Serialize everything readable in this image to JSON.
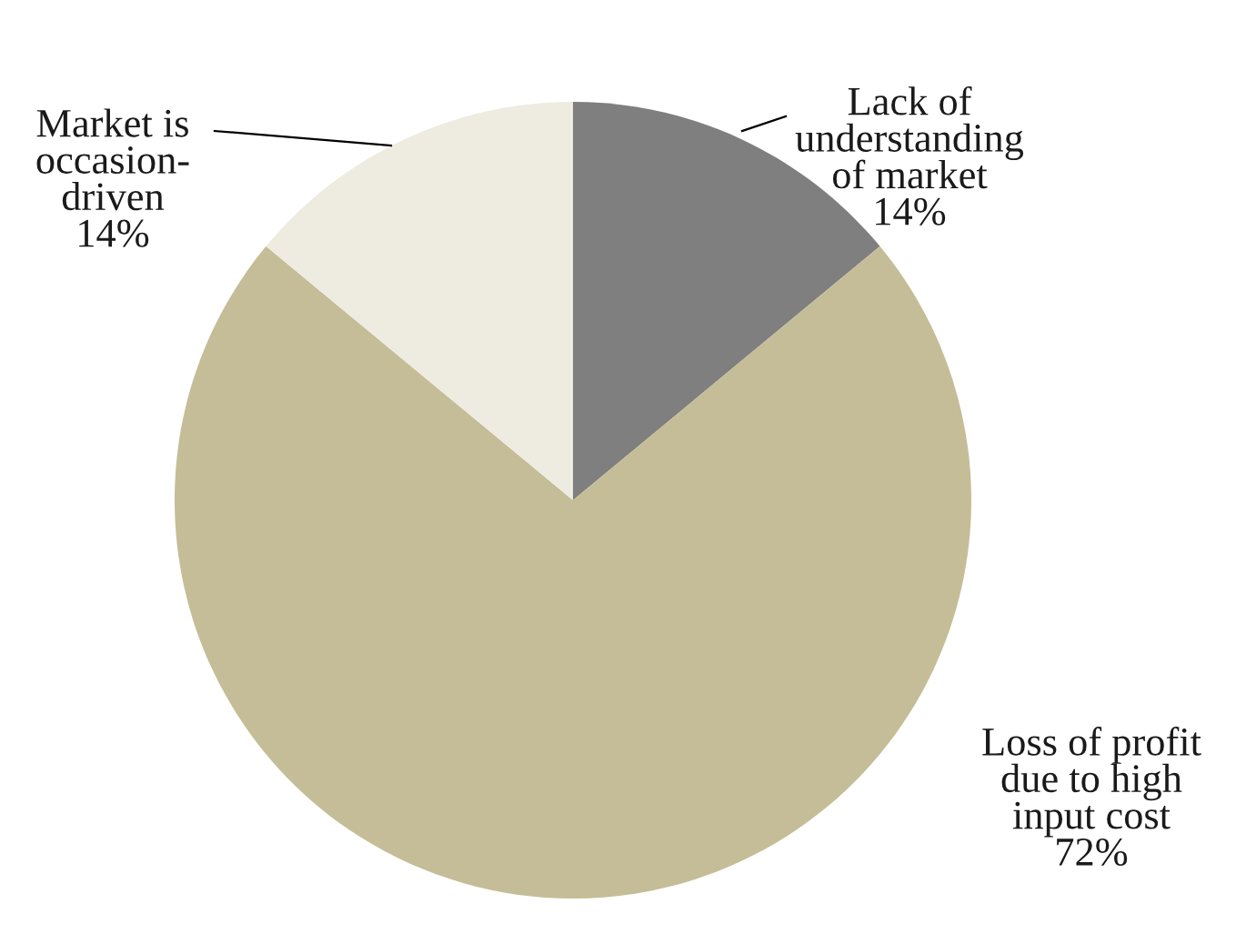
{
  "chart_data": {
    "type": "pie",
    "categories": [
      "Lack of\nunderstanding\nof market",
      "Loss of profit\ndue to high\ninput cost",
      "Market is\noccasion-\ndriven"
    ],
    "values": [
      14,
      72,
      14
    ],
    "value_labels": [
      "14%",
      "72%",
      "14%"
    ],
    "colors": [
      "#7f7f7f",
      "#c4bd97",
      "#eeece1"
    ],
    "legend": false
  }
}
